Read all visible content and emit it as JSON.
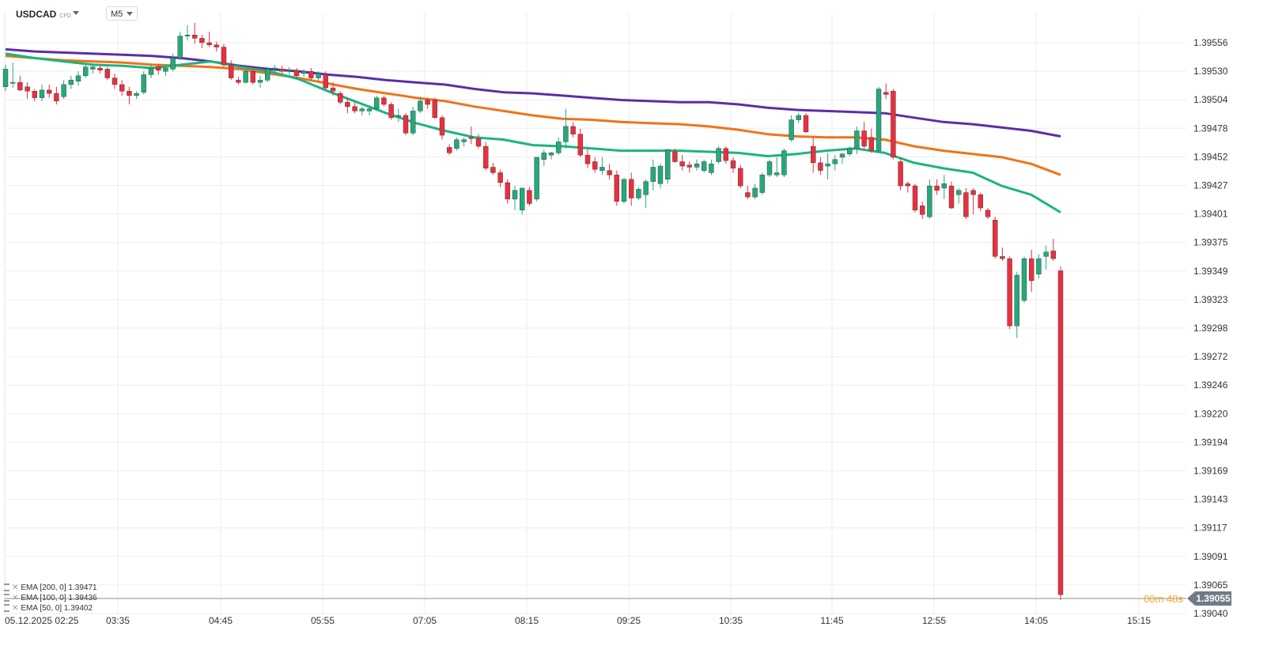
{
  "header": {
    "symbol": "USDCAD",
    "symbol_sub": "CFD",
    "timeframe": "M5"
  },
  "footer": {
    "timer": "00m 48s",
    "current_price": "1.39055"
  },
  "legend": [
    {
      "label": "EMA [200, 0] 1.39471"
    },
    {
      "label": "EMA [100, 0] 1.39436"
    },
    {
      "label": "EMA [50, 0] 1.39402"
    }
  ],
  "chart_data": {
    "type": "candlestick",
    "y_ticks": [
      "1.39556",
      "1.39530",
      "1.39504",
      "1.39478",
      "1.39452",
      "1.39427",
      "1.39401",
      "1.39375",
      "1.39349",
      "1.39323",
      "1.39298",
      "1.39272",
      "1.39246",
      "1.39220",
      "1.39194",
      "1.39169",
      "1.39143",
      "1.39117",
      "1.39091",
      "1.39065",
      "1.39040"
    ],
    "x_ticks": [
      "05.12.2025  02:25",
      "03:35",
      "04:45",
      "05:55",
      "07:05",
      "08:15",
      "09:25",
      "10:35",
      "11:45",
      "12:55",
      "14:05",
      "15:15"
    ],
    "ylim": [
      1.3904,
      1.39572
    ],
    "colors": {
      "up": "#26a87b",
      "down": "#e8303f",
      "ema200": "#5b2ea8",
      "ema100": "#f07318",
      "ema50": "#1bb57f"
    },
    "candles": [
      [
        1.39516,
        1.39536,
        1.39512,
        1.39532
      ],
      [
        1.3952,
        1.39538,
        1.39515,
        1.3952
      ],
      [
        1.3952,
        1.39526,
        1.39512,
        1.39513
      ],
      [
        1.39516,
        1.3952,
        1.39505,
        1.39512
      ],
      [
        1.39512,
        1.39514,
        1.39503,
        1.39506
      ],
      [
        1.39506,
        1.39518,
        1.39503,
        1.39513
      ],
      [
        1.39513,
        1.39518,
        1.39506,
        1.3951
      ],
      [
        1.3951,
        1.39516,
        1.395,
        1.39503
      ],
      [
        1.39507,
        1.39522,
        1.39505,
        1.39518
      ],
      [
        1.39518,
        1.39526,
        1.39514,
        1.39522
      ],
      [
        1.39521,
        1.3953,
        1.39517,
        1.39526
      ],
      [
        1.39526,
        1.39536,
        1.39524,
        1.39534
      ],
      [
        1.39532,
        1.39536,
        1.39528,
        1.39534
      ],
      [
        1.39533,
        1.39535,
        1.39528,
        1.39531
      ],
      [
        1.39532,
        1.39534,
        1.39522,
        1.39524
      ],
      [
        1.39524,
        1.39528,
        1.39514,
        1.39518
      ],
      [
        1.39518,
        1.39522,
        1.39508,
        1.39512
      ],
      [
        1.39512,
        1.39516,
        1.395,
        1.39508
      ],
      [
        1.39508,
        1.39512,
        1.39505,
        1.3951
      ],
      [
        1.39511,
        1.3953,
        1.39509,
        1.39527
      ],
      [
        1.39527,
        1.39536,
        1.39524,
        1.39533
      ],
      [
        1.39534,
        1.39537,
        1.39527,
        1.39531
      ],
      [
        1.3953,
        1.39534,
        1.39526,
        1.39533
      ],
      [
        1.39532,
        1.39546,
        1.3953,
        1.39542
      ],
      [
        1.39542,
        1.39566,
        1.3954,
        1.39562
      ],
      [
        1.39562,
        1.39572,
        1.39558,
        1.39563
      ],
      [
        1.39563,
        1.39574,
        1.39555,
        1.3956
      ],
      [
        1.3956,
        1.39563,
        1.39551,
        1.39556
      ],
      [
        1.39556,
        1.39566,
        1.39552,
        1.39554
      ],
      [
        1.39554,
        1.39557,
        1.39548,
        1.39552
      ],
      [
        1.39552,
        1.39555,
        1.39534,
        1.39536
      ],
      [
        1.39536,
        1.3954,
        1.39522,
        1.39524
      ],
      [
        1.39522,
        1.39525,
        1.39518,
        1.3952
      ],
      [
        1.3952,
        1.39532,
        1.39519,
        1.3953
      ],
      [
        1.3953,
        1.39535,
        1.39518,
        1.3952
      ],
      [
        1.3952,
        1.39526,
        1.39515,
        1.39522
      ],
      [
        1.39522,
        1.39534,
        1.3952,
        1.39532
      ],
      [
        1.39532,
        1.39536,
        1.39527,
        1.39533
      ],
      [
        1.39532,
        1.39535,
        1.39528,
        1.3953
      ],
      [
        1.3953,
        1.39534,
        1.39527,
        1.39531
      ],
      [
        1.39531,
        1.39533,
        1.39524,
        1.39526
      ],
      [
        1.39528,
        1.39532,
        1.39525,
        1.3953
      ],
      [
        1.3953,
        1.39533,
        1.39522,
        1.39524
      ],
      [
        1.39524,
        1.3953,
        1.3952,
        1.39528
      ],
      [
        1.39527,
        1.3953,
        1.39513,
        1.39515
      ],
      [
        1.39515,
        1.3952,
        1.39508,
        1.39512
      ],
      [
        1.3951,
        1.39512,
        1.395,
        1.39502
      ],
      [
        1.39502,
        1.39506,
        1.39492,
        1.39498
      ],
      [
        1.39498,
        1.39502,
        1.39492,
        1.39494
      ],
      [
        1.39494,
        1.39498,
        1.3949,
        1.39496
      ],
      [
        1.39494,
        1.39498,
        1.3949,
        1.39496
      ],
      [
        1.39496,
        1.39508,
        1.39494,
        1.39506
      ],
      [
        1.39506,
        1.39508,
        1.39498,
        1.395
      ],
      [
        1.395,
        1.39502,
        1.39486,
        1.39488
      ],
      [
        1.3949,
        1.39496,
        1.39484,
        1.3949
      ],
      [
        1.3949,
        1.39492,
        1.39472,
        1.39474
      ],
      [
        1.39474,
        1.39498,
        1.39472,
        1.39494
      ],
      [
        1.39494,
        1.39507,
        1.39492,
        1.39503
      ],
      [
        1.39504,
        1.39506,
        1.39496,
        1.395
      ],
      [
        1.39504,
        1.39506,
        1.39487,
        1.39488
      ],
      [
        1.39488,
        1.3949,
        1.39468,
        1.39472
      ],
      [
        1.39461,
        1.39464,
        1.39454,
        1.39456
      ],
      [
        1.3946,
        1.3947,
        1.39458,
        1.39468
      ],
      [
        1.39466,
        1.3947,
        1.39462,
        1.39468
      ],
      [
        1.3947,
        1.3948,
        1.39464,
        1.39469
      ],
      [
        1.39469,
        1.39473,
        1.3946,
        1.39462
      ],
      [
        1.39462,
        1.39466,
        1.3944,
        1.39442
      ],
      [
        1.39443,
        1.39447,
        1.39436,
        1.39438
      ],
      [
        1.39438,
        1.39441,
        1.39425,
        1.39429
      ],
      [
        1.39429,
        1.39432,
        1.3941,
        1.39414
      ],
      [
        1.39414,
        1.39426,
        1.39404,
        1.39422
      ],
      [
        1.39404,
        1.39424,
        1.394,
        1.39424
      ],
      [
        1.39422,
        1.39425,
        1.39408,
        1.3941
      ],
      [
        1.39414,
        1.39452,
        1.39412,
        1.39452
      ],
      [
        1.3945,
        1.39459,
        1.39444,
        1.39456
      ],
      [
        1.39454,
        1.39457,
        1.3945,
        1.39456
      ],
      [
        1.39456,
        1.3947,
        1.39454,
        1.39466
      ],
      [
        1.39466,
        1.39496,
        1.3946,
        1.3948
      ],
      [
        1.3948,
        1.39484,
        1.3947,
        1.39473
      ],
      [
        1.39473,
        1.39478,
        1.39452,
        1.39454
      ],
      [
        1.39454,
        1.3946,
        1.39442,
        1.39446
      ],
      [
        1.39448,
        1.39452,
        1.39438,
        1.39441
      ],
      [
        1.3944,
        1.39452,
        1.39436,
        1.39443
      ],
      [
        1.3944,
        1.39446,
        1.39432,
        1.39436
      ],
      [
        1.39436,
        1.3944,
        1.39408,
        1.39412
      ],
      [
        1.39412,
        1.39433,
        1.3941,
        1.39432
      ],
      [
        1.39432,
        1.39438,
        1.39408,
        1.39415
      ],
      [
        1.39415,
        1.39425,
        1.39413,
        1.39423
      ],
      [
        1.39418,
        1.39432,
        1.39406,
        1.3943
      ],
      [
        1.3943,
        1.3945,
        1.39422,
        1.39443
      ],
      [
        1.39428,
        1.39446,
        1.39424,
        1.39444
      ],
      [
        1.39432,
        1.3946,
        1.39428,
        1.39459
      ],
      [
        1.39457,
        1.3946,
        1.39447,
        1.39448
      ],
      [
        1.39448,
        1.39454,
        1.3944,
        1.39444
      ],
      [
        1.39445,
        1.39448,
        1.39438,
        1.39443
      ],
      [
        1.39443,
        1.3945,
        1.3944,
        1.39446
      ],
      [
        1.3944,
        1.3945,
        1.39438,
        1.39448
      ],
      [
        1.39438,
        1.3945,
        1.39436,
        1.39446
      ],
      [
        1.39448,
        1.39462,
        1.39446,
        1.3946
      ],
      [
        1.3946,
        1.39462,
        1.39446,
        1.39449
      ],
      [
        1.39449,
        1.39452,
        1.39438,
        1.39442
      ],
      [
        1.39442,
        1.39445,
        1.39424,
        1.39426
      ],
      [
        1.3942,
        1.39426,
        1.39414,
        1.39416
      ],
      [
        1.39416,
        1.39428,
        1.39414,
        1.39424
      ],
      [
        1.3942,
        1.39438,
        1.39418,
        1.39436
      ],
      [
        1.39436,
        1.3945,
        1.39434,
        1.39448
      ],
      [
        1.39436,
        1.39452,
        1.39434,
        1.39438
      ],
      [
        1.39436,
        1.3946,
        1.39434,
        1.39458
      ],
      [
        1.39468,
        1.3949,
        1.39466,
        1.39486
      ],
      [
        1.39486,
        1.39492,
        1.39483,
        1.3949
      ],
      [
        1.3949,
        1.39492,
        1.39474,
        1.39475
      ],
      [
        1.39462,
        1.3947,
        1.39438,
        1.39447
      ],
      [
        1.39447,
        1.39452,
        1.39436,
        1.3944
      ],
      [
        1.39444,
        1.39456,
        1.39432,
        1.39446
      ],
      [
        1.39446,
        1.39454,
        1.3944,
        1.3945
      ],
      [
        1.39452,
        1.39456,
        1.39446,
        1.39455
      ],
      [
        1.39455,
        1.39462,
        1.39453,
        1.3946
      ],
      [
        1.3946,
        1.3948,
        1.39455,
        1.39476
      ],
      [
        1.39476,
        1.39484,
        1.3946,
        1.39462
      ],
      [
        1.3947,
        1.39478,
        1.39456,
        1.39458
      ],
      [
        1.39458,
        1.39516,
        1.39456,
        1.39514
      ],
      [
        1.39511,
        1.39519,
        1.39505,
        1.39509
      ],
      [
        1.39512,
        1.39514,
        1.3945,
        1.39452
      ],
      [
        1.39448,
        1.39452,
        1.39422,
        1.39426
      ],
      [
        1.39428,
        1.3943,
        1.3942,
        1.39426
      ],
      [
        1.39426,
        1.39428,
        1.39402,
        1.39404
      ],
      [
        1.39408,
        1.39412,
        1.39396,
        1.394
      ],
      [
        1.39398,
        1.39432,
        1.39396,
        1.39426
      ],
      [
        1.39426,
        1.39432,
        1.39418,
        1.39422
      ],
      [
        1.39424,
        1.39436,
        1.39414,
        1.39428
      ],
      [
        1.39426,
        1.3943,
        1.39405,
        1.39406
      ],
      [
        1.39418,
        1.39424,
        1.3941,
        1.39422
      ],
      [
        1.3942,
        1.39424,
        1.39396,
        1.39398
      ],
      [
        1.39422,
        1.39424,
        1.394,
        1.39418
      ],
      [
        1.39418,
        1.3942,
        1.39403,
        1.39406
      ],
      [
        1.39404,
        1.39406,
        1.39396,
        1.39398
      ],
      [
        1.39395,
        1.39398,
        1.3936,
        1.39362
      ],
      [
        1.39362,
        1.3937,
        1.39358,
        1.3936
      ],
      [
        1.3936,
        1.39362,
        1.39296,
        1.39299
      ],
      [
        1.39299,
        1.39348,
        1.39288,
        1.39345
      ],
      [
        1.39322,
        1.39362,
        1.3932,
        1.3936
      ],
      [
        1.3936,
        1.39368,
        1.3933,
        1.3934
      ],
      [
        1.39346,
        1.39364,
        1.39342,
        1.3936
      ],
      [
        1.39362,
        1.39372,
        1.3935,
        1.39366
      ],
      [
        1.39367,
        1.39378,
        1.39358,
        1.3936
      ],
      [
        1.39349,
        1.39353,
        1.3905,
        1.39055
      ]
    ],
    "ema200": [
      1.3955,
      1.39548,
      1.39547,
      1.39546,
      1.39545,
      1.39544,
      1.39542,
      1.39539,
      1.39535,
      1.39532,
      1.3953,
      1.39527,
      1.39525,
      1.39522,
      1.3952,
      1.39518,
      1.39514,
      1.39511,
      1.3951,
      1.39508,
      1.39506,
      1.39504,
      1.39503,
      1.39502,
      1.39502,
      1.395,
      1.39497,
      1.39495,
      1.39494,
      1.39493,
      1.39492,
      1.39488,
      1.39484,
      1.39482,
      1.39479,
      1.39476,
      1.39471
    ],
    "ema100": [
      1.39544,
      1.39542,
      1.3954,
      1.39539,
      1.39538,
      1.39536,
      1.39535,
      1.39534,
      1.39532,
      1.39528,
      1.39524,
      1.39519,
      1.39514,
      1.3951,
      1.39506,
      1.39503,
      1.39498,
      1.39494,
      1.3949,
      1.39487,
      1.39486,
      1.39484,
      1.39483,
      1.39482,
      1.3948,
      1.39477,
      1.39473,
      1.39471,
      1.3947,
      1.3947,
      1.39468,
      1.39462,
      1.39458,
      1.39455,
      1.39452,
      1.39446,
      1.39436
    ],
    "ema50": [
      1.39546,
      1.39542,
      1.39539,
      1.39536,
      1.39535,
      1.39533,
      1.39536,
      1.39539,
      1.39534,
      1.3953,
      1.39523,
      1.39512,
      1.39502,
      1.39492,
      1.39483,
      1.39476,
      1.3947,
      1.39468,
      1.39463,
      1.39462,
      1.3946,
      1.39458,
      1.39458,
      1.39458,
      1.39457,
      1.39456,
      1.39453,
      1.39455,
      1.39458,
      1.3946,
      1.39456,
      1.39447,
      1.39442,
      1.39438,
      1.39426,
      1.39418,
      1.39402
    ]
  }
}
